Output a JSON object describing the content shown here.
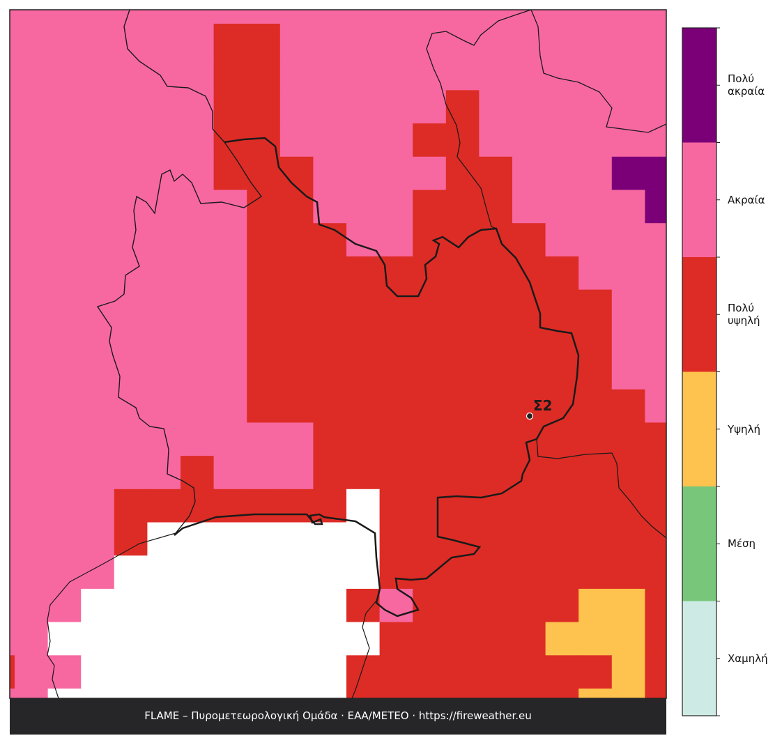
{
  "legend": {
    "categories": [
      {
        "label": "Χαμηλή",
        "color": "#cdebe4"
      },
      {
        "label": "Μέση",
        "color": "#78c679"
      },
      {
        "label": "Υψηλή",
        "color": "#fec24f"
      },
      {
        "label": "Πολύ υψηλή",
        "color": "#dd2c25"
      },
      {
        "label": "Ακραία",
        "color": "#f768a1"
      },
      {
        "label": "Πολύ ακραία",
        "color": "#7b0077"
      }
    ]
  },
  "station": {
    "label": "Σ2"
  },
  "footer": "FLAME – Πυρομετεωρολογική Ομάδα · ΕΑΑ/METEO · https://fireweather.eu"
}
